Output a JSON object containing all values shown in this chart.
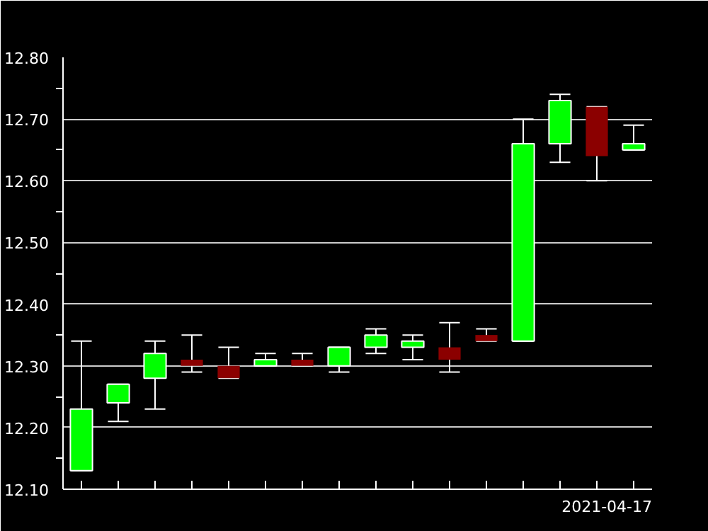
{
  "chart_data": {
    "type": "candlestick",
    "categories": [
      null,
      null,
      null,
      null,
      null,
      null,
      null,
      null,
      null,
      null,
      null,
      null,
      null,
      null,
      null,
      null
    ],
    "ohlc": [
      [
        12.13,
        12.34,
        12.13,
        12.23
      ],
      [
        12.24,
        12.27,
        12.21,
        12.27
      ],
      [
        12.28,
        12.34,
        12.23,
        12.32
      ],
      [
        12.31,
        12.35,
        12.29,
        12.3
      ],
      [
        12.3,
        12.33,
        12.28,
        12.28
      ],
      [
        12.3,
        12.32,
        12.3,
        12.31
      ],
      [
        12.31,
        12.32,
        12.3,
        12.3
      ],
      [
        12.3,
        12.33,
        12.29,
        12.33
      ],
      [
        12.33,
        12.36,
        12.32,
        12.35
      ],
      [
        12.33,
        12.35,
        12.31,
        12.34
      ],
      [
        12.33,
        12.37,
        12.29,
        12.31
      ],
      [
        12.35,
        12.36,
        12.34,
        12.34
      ],
      [
        12.34,
        12.7,
        12.34,
        12.66
      ],
      [
        12.66,
        12.74,
        12.63,
        12.73
      ],
      [
        12.72,
        12.72,
        12.6,
        12.64
      ],
      [
        12.65,
        12.69,
        12.65,
        12.66
      ]
    ],
    "colors": [
      "#00ff00",
      "#00ff00",
      "#00ff00",
      "#8b0000",
      "#8b0000",
      "#00ff00",
      "#8b0000",
      "#00ff00",
      "#00ff00",
      "#00ff00",
      "#8b0000",
      "#8b0000",
      "#00ff00",
      "#00ff00",
      "#8b0000",
      "#00ff00"
    ],
    "ylim": [
      12.1,
      12.8
    ],
    "yticks": [
      {
        "value": 12.1,
        "label": "12.10"
      },
      {
        "value": 12.2,
        "label": "12.20"
      },
      {
        "value": 12.3,
        "label": "12.30"
      },
      {
        "value": 12.4,
        "label": "12.40"
      },
      {
        "value": 12.5,
        "label": "12.50"
      },
      {
        "value": 12.6,
        "label": "12.60"
      },
      {
        "value": 12.7,
        "label": "12.70"
      },
      {
        "value": 12.8,
        "label": "12.80"
      }
    ],
    "grid": "y",
    "annotations": [
      "2021-04-17"
    ]
  }
}
